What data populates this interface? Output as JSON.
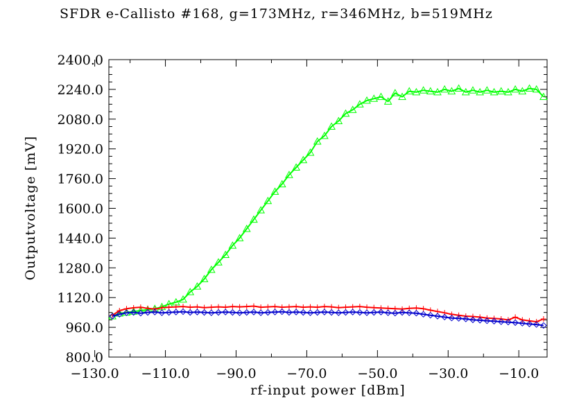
{
  "chart_data": {
    "type": "line",
    "title": "SFDR e-Callisto #168, g=173MHz, r=346MHz, b=519MHz",
    "xlabel": "rf-input power [dBm]",
    "ylabel": "Outputvoltage [mV]",
    "xlim": [
      -126,
      -2
    ],
    "ylim": [
      800,
      2400
    ],
    "x_ticks": [
      "-130.0",
      "-110.0",
      "-90.0",
      "-70.0",
      "-50.0",
      "-30.0",
      "-10.0"
    ],
    "y_ticks": [
      "800.0",
      "960.0",
      "1120.0",
      "1280.0",
      "1440.0",
      "1600.0",
      "1760.0",
      "1920.0",
      "2080.0",
      "2240.0",
      "2400.0"
    ],
    "grid": false,
    "legend": "none",
    "x": [
      -125,
      -123,
      -121,
      -119,
      -117,
      -115,
      -113,
      -111,
      -109,
      -107,
      -105,
      -103,
      -101,
      -99,
      -97,
      -95,
      -93,
      -91,
      -89,
      -87,
      -85,
      -83,
      -81,
      -79,
      -77,
      -75,
      -73,
      -71,
      -69,
      -67,
      -65,
      -63,
      -61,
      -59,
      -57,
      -55,
      -53,
      -51,
      -49,
      -47,
      -45,
      -43,
      -41,
      -39,
      -37,
      -35,
      -33,
      -31,
      -29,
      -27,
      -25,
      -23,
      -21,
      -19,
      -17,
      -15,
      -13,
      -11,
      -9,
      -7,
      -5,
      -3
    ],
    "series": [
      {
        "color": "#00ff00",
        "marker": "triangle",
        "values": [
          1020,
          1035,
          1040,
          1045,
          1050,
          1055,
          1060,
          1070,
          1085,
          1095,
          1110,
          1150,
          1180,
          1220,
          1270,
          1310,
          1350,
          1400,
          1440,
          1490,
          1540,
          1590,
          1640,
          1690,
          1730,
          1780,
          1820,
          1860,
          1900,
          1960,
          1990,
          2040,
          2070,
          2110,
          2130,
          2160,
          2180,
          2190,
          2200,
          2175,
          2220,
          2200,
          2230,
          2225,
          2235,
          2230,
          2225,
          2240,
          2230,
          2245,
          2225,
          2235,
          2225,
          2235,
          2225,
          2230,
          2225,
          2240,
          2230,
          2245,
          2240,
          2200
        ]
      },
      {
        "color": "#ff0000",
        "marker": "plus",
        "values": [
          1025,
          1050,
          1060,
          1065,
          1068,
          1062,
          1058,
          1065,
          1068,
          1070,
          1072,
          1068,
          1070,
          1066,
          1068,
          1070,
          1068,
          1072,
          1070,
          1072,
          1074,
          1068,
          1070,
          1072,
          1068,
          1070,
          1072,
          1068,
          1070,
          1068,
          1072,
          1070,
          1066,
          1068,
          1070,
          1072,
          1068,
          1066,
          1064,
          1062,
          1060,
          1058,
          1062,
          1064,
          1060,
          1052,
          1045,
          1038,
          1030,
          1025,
          1020,
          1018,
          1015,
          1010,
          1008,
          1005,
          1000,
          1015,
          1000,
          995,
          990,
          1005
        ]
      },
      {
        "color": "#0000cc",
        "marker": "diamond",
        "values": [
          1020,
          1030,
          1038,
          1040,
          1036,
          1040,
          1042,
          1038,
          1040,
          1042,
          1044,
          1040,
          1042,
          1040,
          1038,
          1040,
          1042,
          1040,
          1038,
          1040,
          1042,
          1038,
          1040,
          1042,
          1044,
          1040,
          1042,
          1040,
          1038,
          1040,
          1042,
          1040,
          1038,
          1040,
          1042,
          1040,
          1038,
          1040,
          1042,
          1038,
          1036,
          1040,
          1038,
          1036,
          1030,
          1025,
          1020,
          1015,
          1010,
          1008,
          1005,
          1000,
          998,
          995,
          993,
          990,
          988,
          985,
          982,
          978,
          975,
          970
        ]
      }
    ]
  }
}
